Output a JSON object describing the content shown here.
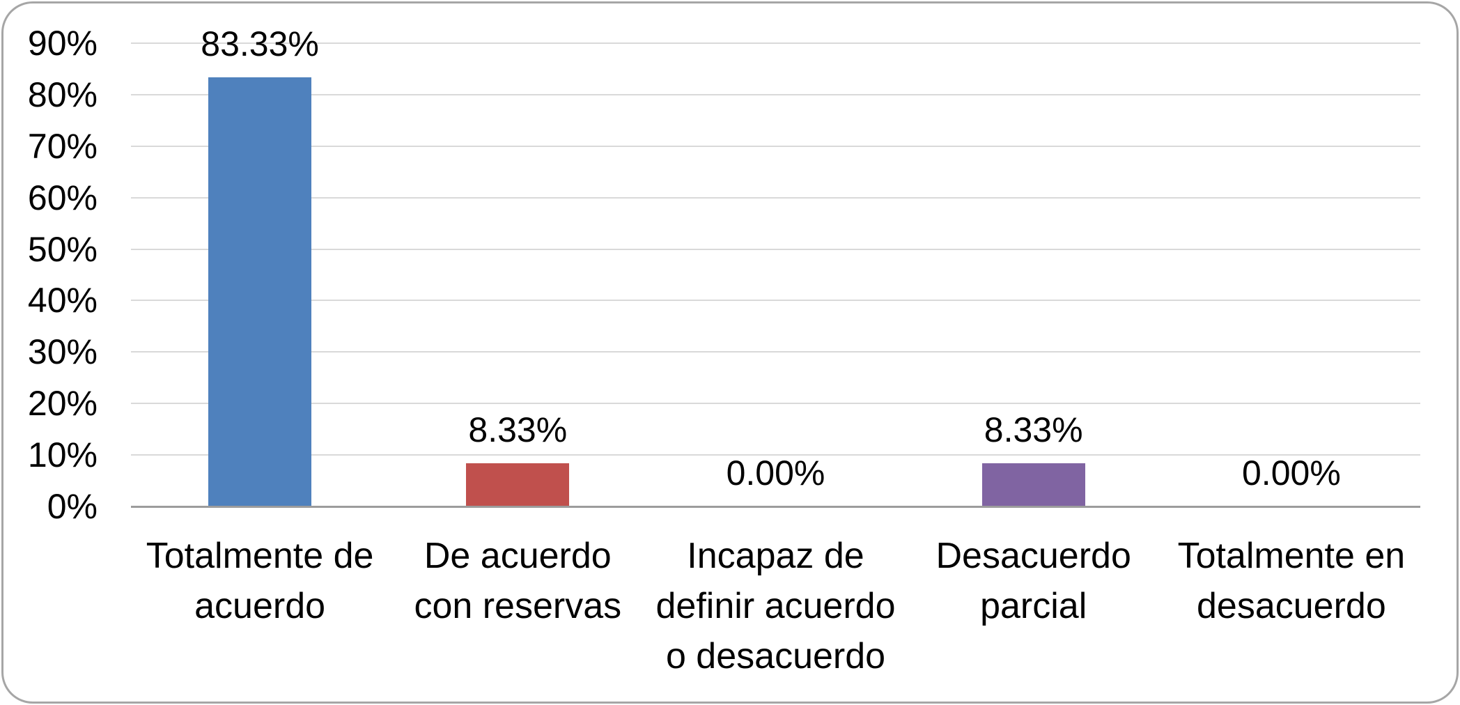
{
  "chart_data": {
    "type": "bar",
    "title": "",
    "xlabel": "",
    "ylabel": "",
    "categories": [
      "Totalmente de acuerdo",
      "De acuerdo con reservas",
      "Incapaz de definir acuerdo o desacuerdo",
      "Desacuerdo parcial",
      "Totalmente en desacuerdo"
    ],
    "x_tick_labels": [
      "Totalmente de\nacuerdo",
      "De acuerdo\ncon reservas",
      "Incapaz de\ndefinir acuerdo\no desacuerdo",
      "Desacuerdo\nparcial",
      "Totalmente en\ndesacuerdo"
    ],
    "values": [
      83.33,
      8.33,
      0.0,
      8.33,
      0.0
    ],
    "data_labels": [
      "83.33%",
      "8.33%",
      "0.00%",
      "8.33%",
      "0.00%"
    ],
    "bar_colors": [
      "#4F81BD",
      "#C0504D",
      null,
      "#8064A2",
      null
    ],
    "y_ticks": [
      "0%",
      "10%",
      "20%",
      "30%",
      "40%",
      "50%",
      "60%",
      "70%",
      "80%",
      "90%"
    ],
    "ylim": [
      0,
      90
    ],
    "grid": true,
    "legend": false
  },
  "frame": {
    "background": "#FFFFFF",
    "border_color": "#A6A6A6",
    "gridline_color": "#D9D9D9",
    "axis_line_color": "#9C9C9C",
    "text_color": "#000000"
  }
}
